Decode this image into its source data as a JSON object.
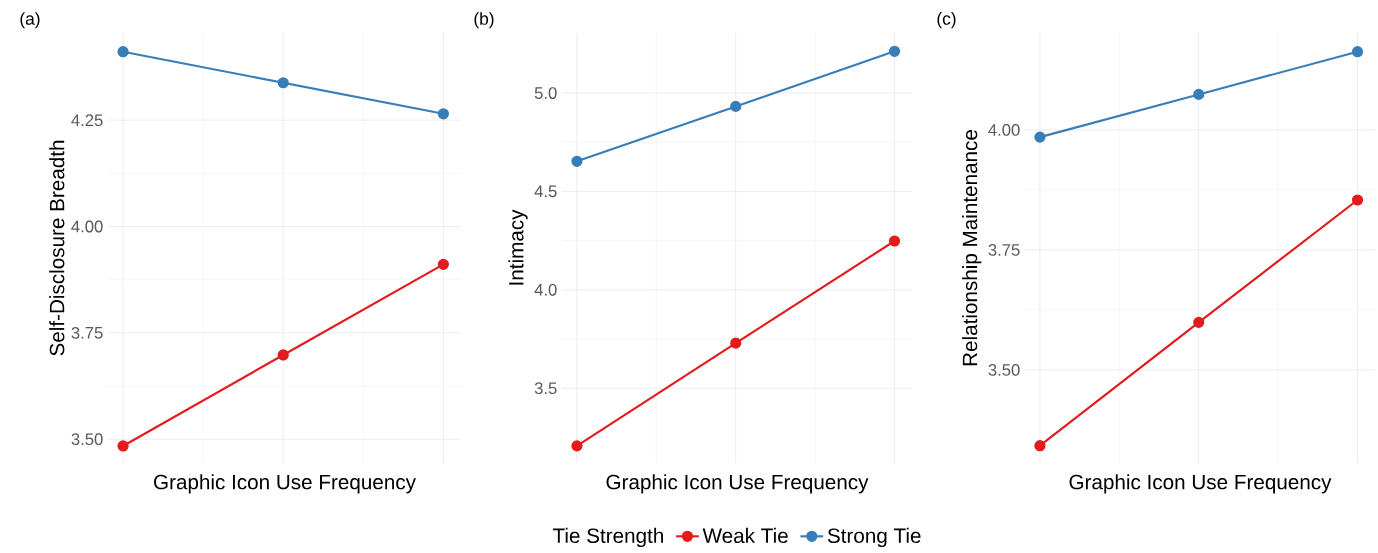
{
  "chart_data": [
    {
      "type": "line",
      "title": "(a)",
      "xlabel": "Graphic Icon Use Frequency",
      "ylabel": "Self-Disclosure Breadth",
      "categories": [
        null,
        null,
        null
      ],
      "ylim": [
        3.444,
        4.455
      ],
      "yticks": [
        {
          "value": 3.5,
          "label": "3.50"
        },
        {
          "value": 3.75,
          "label": "3.75"
        },
        {
          "value": 4.0,
          "label": "4.00"
        },
        {
          "value": 4.25,
          "label": "4.25"
        }
      ],
      "tick_labels": "y",
      "grid": true,
      "marker": "circle",
      "line_style": "solid",
      "series": [
        {
          "color": "#e41a1c",
          "values": [
            3.484,
            3.698,
            3.911
          ]
        },
        {
          "color": "#377eb8",
          "values": [
            4.411,
            4.338,
            4.265
          ]
        }
      ]
    },
    {
      "type": "line",
      "title": "(b)",
      "xlabel": "Graphic Icon Use Frequency",
      "ylabel": "Intimacy",
      "categories": [
        null,
        null,
        null
      ],
      "ylim": [
        3.12,
        5.305
      ],
      "yticks": [
        {
          "value": 3.5,
          "label": "3.5"
        },
        {
          "value": 4.0,
          "label": "4.0"
        },
        {
          "value": 4.5,
          "label": "4.5"
        },
        {
          "value": 5.0,
          "label": "5.0"
        }
      ],
      "tick_labels": "y",
      "grid": true,
      "marker": "circle",
      "line_style": "solid",
      "legend": "bottom",
      "legend_title": "Tie Strength",
      "series": [
        {
          "name": "Weak Tie",
          "color": "#e41a1c",
          "values": [
            3.207,
            3.729,
            4.248
          ]
        },
        {
          "name": "Strong Tie",
          "color": "#377eb8",
          "values": [
            4.653,
            4.932,
            5.212
          ]
        }
      ]
    },
    {
      "type": "line",
      "title": "(c)",
      "xlabel": "Graphic Icon Use Frequency",
      "ylabel": "Relationship Maintenance",
      "categories": [
        null,
        null,
        null
      ],
      "ylim": [
        3.306,
        4.202
      ],
      "yticks": [
        {
          "value": 3.5,
          "label": "3.50"
        },
        {
          "value": 3.75,
          "label": "3.75"
        },
        {
          "value": 4.0,
          "label": "4.00"
        }
      ],
      "tick_labels": "y",
      "grid": true,
      "marker": "circle",
      "line_style": "solid",
      "series": [
        {
          "color": "#e41a1c",
          "values": [
            3.342,
            3.599,
            3.854
          ]
        },
        {
          "color": "#377eb8",
          "values": [
            3.985,
            4.074,
            4.163
          ]
        }
      ]
    }
  ]
}
